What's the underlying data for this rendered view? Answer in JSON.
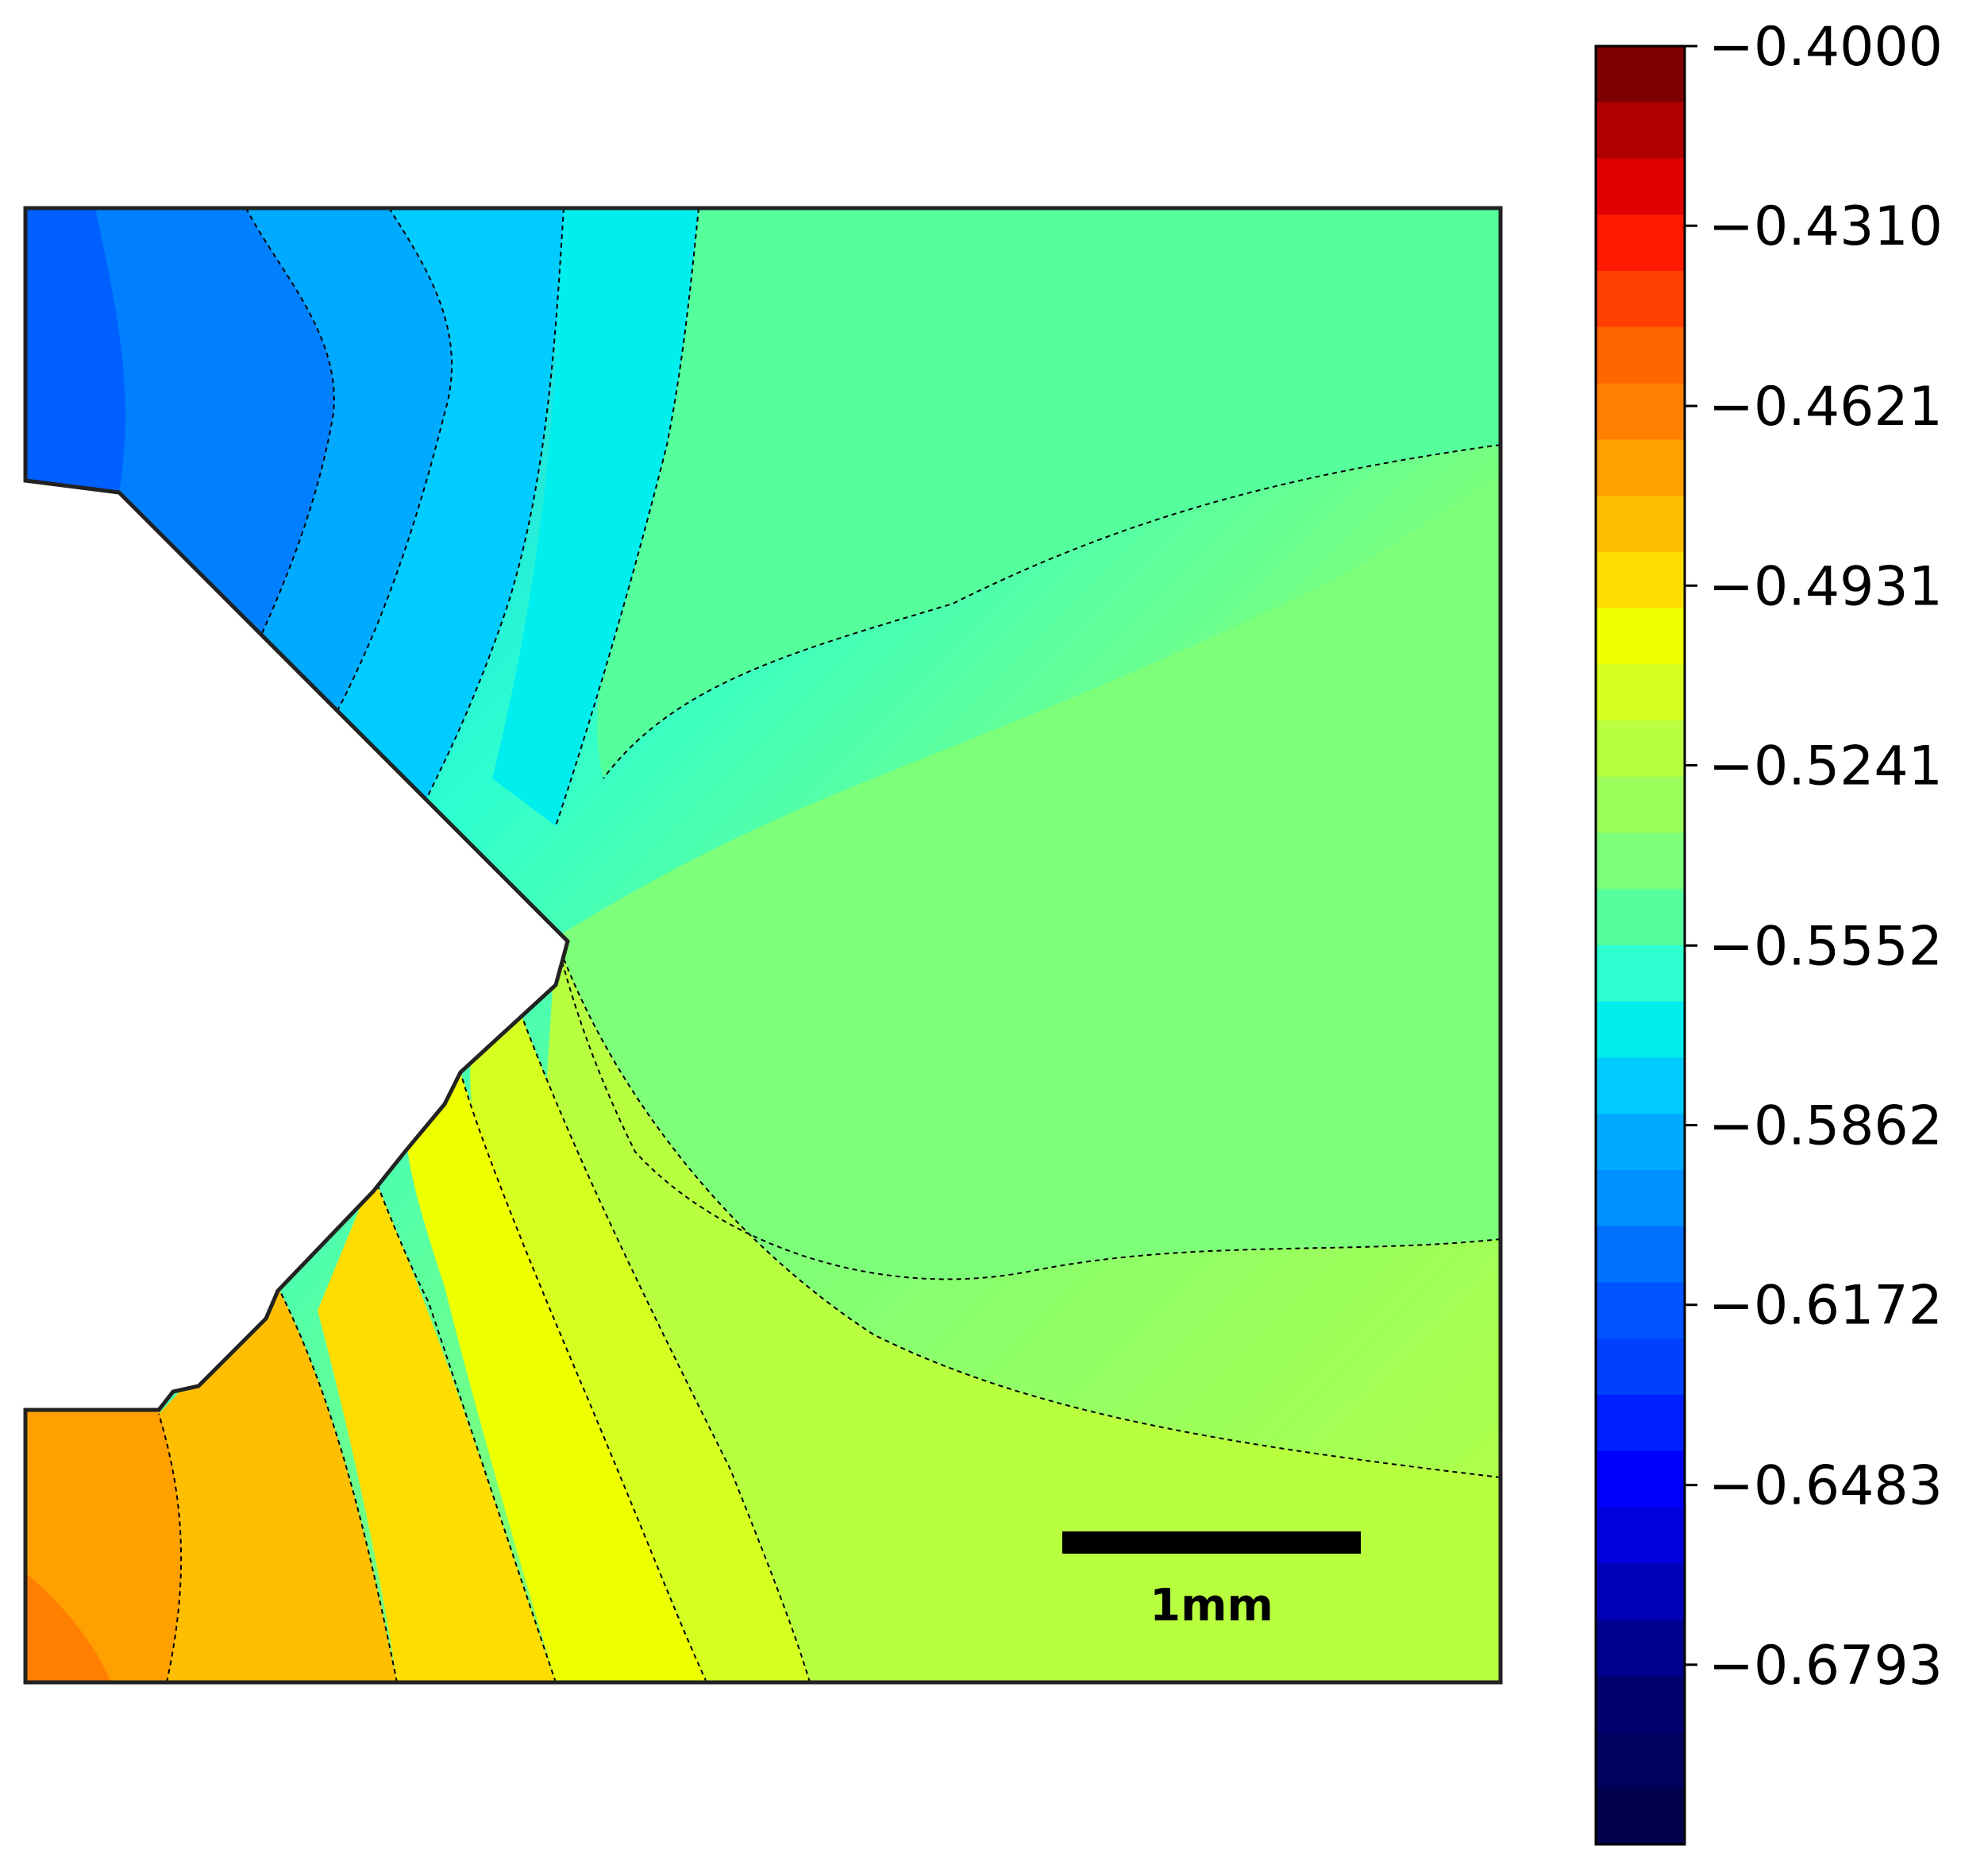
{
  "chart_data": {
    "type": "heatmap",
    "title": "",
    "xlabel": "",
    "ylabel": "",
    "colormap": "jet",
    "value_range": [
      -0.7103,
      -0.4
    ],
    "colorbar": {
      "levels": 20,
      "tick_labels": [
        "−0.4000",
        "−0.4310",
        "−0.4621",
        "−0.4931",
        "−0.5241",
        "−0.5552",
        "−0.5862",
        "−0.6172",
        "−0.6483",
        "−0.6793"
      ],
      "tick_values": [
        -0.4,
        -0.431,
        -0.4621,
        -0.4931,
        -0.5241,
        -0.5552,
        -0.5862,
        -0.6172,
        -0.6483,
        -0.6793
      ],
      "band_colors": [
        "#7f0000",
        "#b00000",
        "#e00000",
        "#ff1a00",
        "#ff4000",
        "#ff6600",
        "#ff8000",
        "#ffa000",
        "#ffbf00",
        "#ffdd00",
        "#eeff00",
        "#d4ff20",
        "#b8ff40",
        "#9cff5c",
        "#7dff7a",
        "#55ff9c",
        "#2effd0",
        "#00eeee",
        "#00ccff",
        "#00aaff"
      ]
    },
    "scale_bar": {
      "label": "1mm"
    },
    "contour_lines": "dashed black",
    "description_regions": [
      {
        "region": "upper-left",
        "approx_value": -0.64
      },
      {
        "region": "top-center",
        "approx_value": -0.6
      },
      {
        "region": "right",
        "approx_value": -0.55
      },
      {
        "region": "lower-center",
        "approx_value": -0.5
      },
      {
        "region": "lower-left",
        "approx_value": -0.47
      }
    ]
  }
}
